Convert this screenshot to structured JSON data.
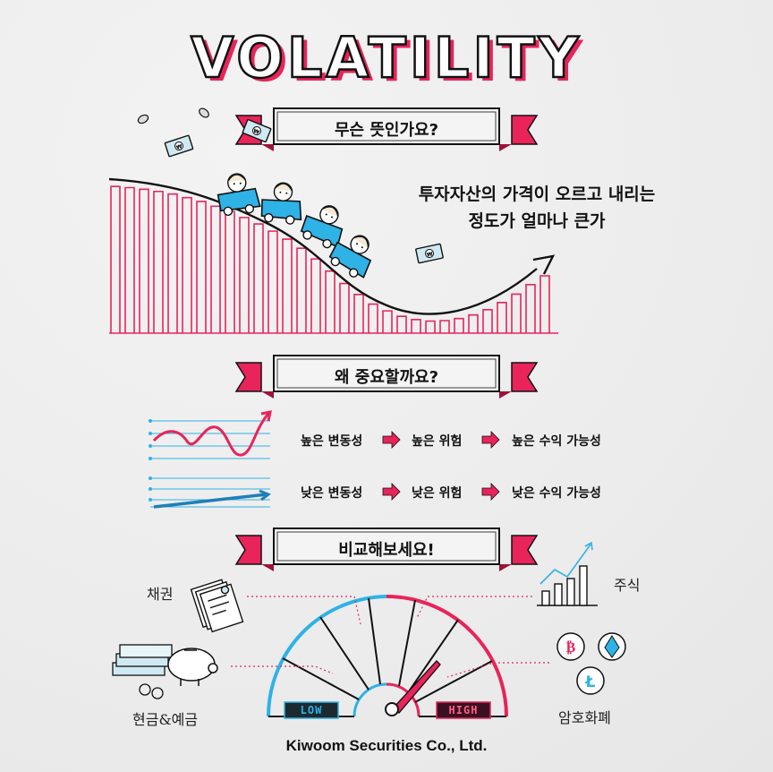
{
  "title": "VOLATILITY",
  "section1": {
    "heading": "무슨 뜻인가요?",
    "description_line1": "투자자산의 가격이 오르고 내리는",
    "description_line2": "정도가 얼마나 큰가"
  },
  "section2": {
    "heading": "왜 중요할까요?",
    "high_row": [
      "높은 변동성",
      "높은 위험",
      "높은 수익 가능성"
    ],
    "low_row": [
      "낮은 변동성",
      "낮은 위험",
      "낮은 수익 가능성"
    ]
  },
  "section3": {
    "heading": "비교해보세요!",
    "assets": {
      "bonds": "채권",
      "stocks": "주식",
      "cash_deposits": "현금&예금",
      "crypto": "암호화폐"
    },
    "gauge": {
      "low_label": "LOW",
      "high_label": "HIGH"
    }
  },
  "footer": "Kiwoom Securities Co., Ltd.",
  "colors": {
    "accent_pink": "#e8245a",
    "accent_blue": "#2fb2e6",
    "ink": "#111111"
  },
  "icons": [
    "money-bill-icon",
    "coin-icon",
    "roller-coaster-car-icon",
    "arrow-right-icon",
    "document-stack-icon",
    "bar-chart-icon",
    "piggy-bank-icon",
    "cash-stack-icon",
    "bitcoin-icon",
    "ethereum-icon",
    "litecoin-icon",
    "gauge-needle-icon"
  ]
}
